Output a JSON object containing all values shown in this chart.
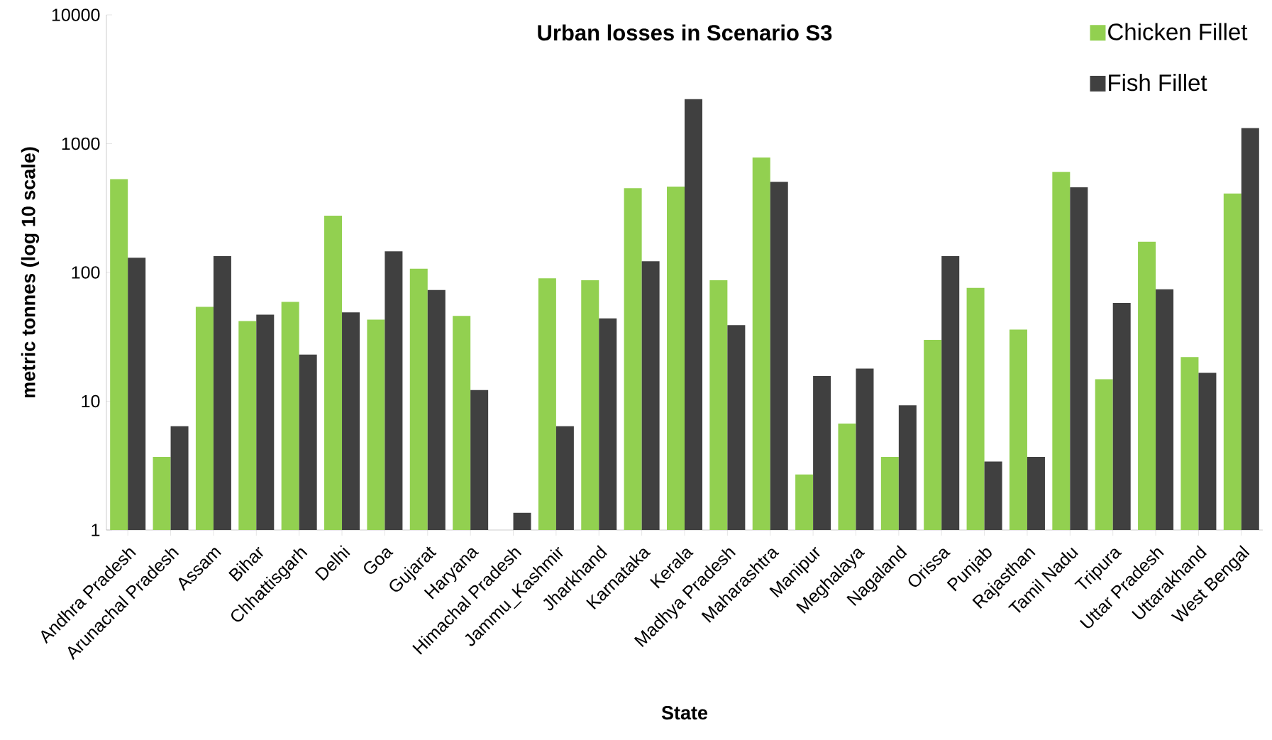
{
  "chart_data": {
    "type": "bar",
    "title": "Urban losses in Scenario S3",
    "xlabel": "State",
    "ylabel": "metric tonnes (log 10 scale)",
    "categories": [
      "Andhra Pradesh",
      "Arunachal Pradesh",
      "Assam",
      "Bihar",
      "Chhattisgarh",
      "Delhi",
      "Goa",
      "Gujarat",
      "Haryana",
      "Himachal Pradesh",
      "Jammu_Kashmir",
      "Jharkhand",
      "Karnataka",
      "Kerala",
      "Madhya Pradesh",
      "Maharashtra",
      "Manipur",
      "Meghalaya",
      "Nagaland",
      "Orissa",
      "Punjab",
      "Rajasthan",
      "Tamil Nadu",
      "Tripura",
      "Uttar Pradesh",
      "Uttarakhand",
      "West Bengal"
    ],
    "series": [
      {
        "name": "Chicken Fillet",
        "color": "#92d050",
        "values": [
          530,
          3.7,
          54,
          42,
          59,
          276,
          43,
          107,
          46,
          null,
          90,
          87,
          451,
          464,
          87,
          782,
          2.7,
          6.7,
          3.7,
          30,
          76,
          36,
          603,
          14.8,
          173,
          22,
          410
        ]
      },
      {
        "name": "Fish Fillet",
        "color": "#404040",
        "values": [
          130,
          6.4,
          134,
          47,
          23,
          49,
          146,
          73,
          12.2,
          1.36,
          6.4,
          44,
          122,
          2220,
          39,
          506,
          15.7,
          17.9,
          9.3,
          134,
          3.4,
          3.7,
          458,
          58,
          74,
          16.6,
          1320
        ]
      }
    ],
    "ylim": [
      1,
      10000
    ],
    "yticks": [
      1,
      10,
      100,
      1000,
      10000
    ],
    "log": true,
    "legend": "top right"
  }
}
